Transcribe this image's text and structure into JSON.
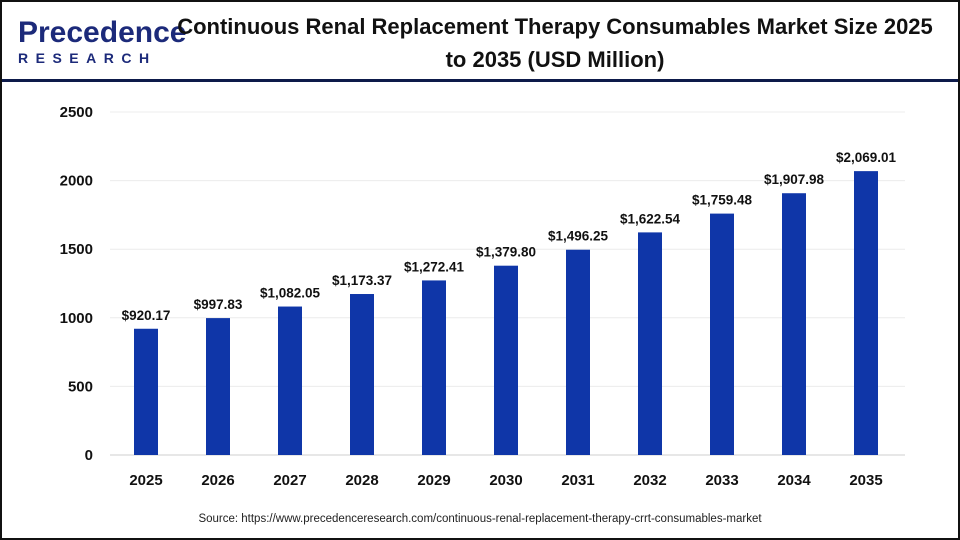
{
  "brand": {
    "line1": "Precedence",
    "line2": "RESEARCH"
  },
  "chart_data": {
    "type": "bar",
    "title": "Continuous Renal Replacement Therapy Consumables Market Size 2025 to 2035 (USD Million)",
    "categories": [
      "2025",
      "2026",
      "2027",
      "2028",
      "2029",
      "2030",
      "2031",
      "2032",
      "2033",
      "2034",
      "2035"
    ],
    "values": [
      920.17,
      997.83,
      1082.05,
      1173.37,
      1272.41,
      1379.8,
      1496.25,
      1622.54,
      1759.48,
      1907.98,
      2069.01
    ],
    "data_labels": [
      "$920.17",
      "$997.83",
      "$1,082.05",
      "$1,173.37",
      "$1,272.41",
      "$1,379.80",
      "$1,496.25",
      "$1,622.54",
      "$1,759.48",
      "$1,907.98",
      "$2,069.01"
    ],
    "yticks": [
      0,
      500,
      1000,
      1500,
      2000,
      2500
    ],
    "ylim": [
      0,
      2500
    ],
    "xlabel": "",
    "ylabel": "",
    "grid": true,
    "bar_color": "#0f36a8"
  },
  "source": "Source: https://www.precedenceresearch.com/continuous-renal-replacement-therapy-crrt-consumables-market"
}
